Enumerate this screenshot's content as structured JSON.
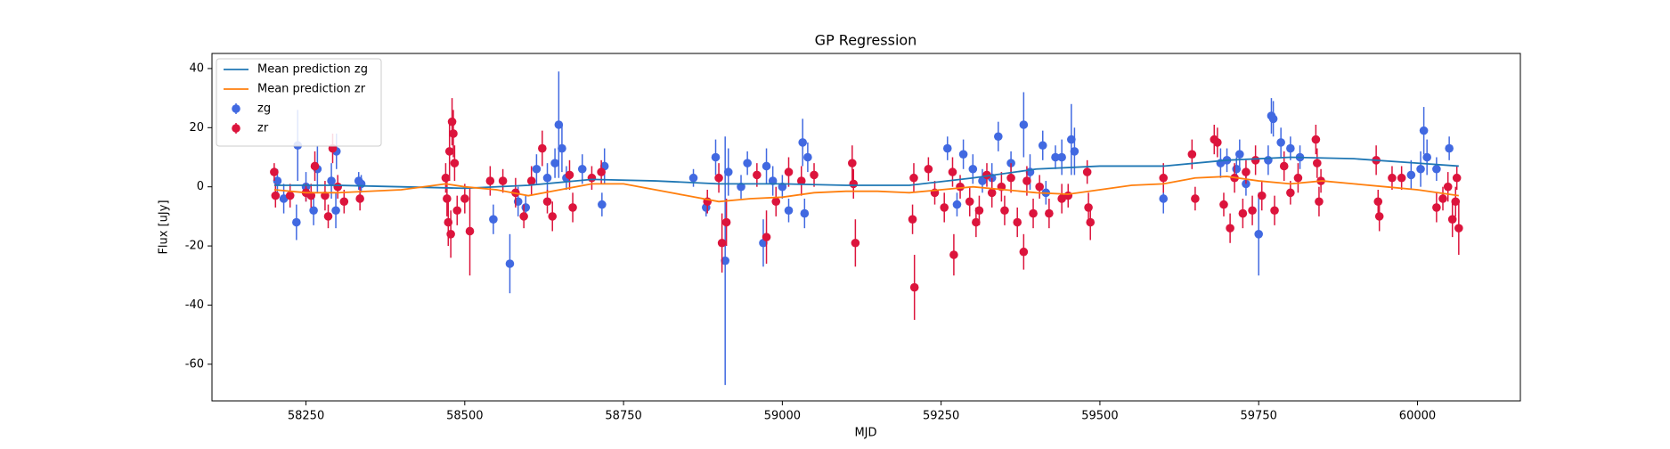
{
  "chart_data": {
    "type": "errorbar",
    "title": "GP Regression",
    "x_label": "MJD",
    "y_label": "Flux [uJy]",
    "xlim": [
      58102,
      60162
    ],
    "ylim": [
      -72.4,
      45.1
    ],
    "xticks": [
      58250,
      58500,
      58750,
      59000,
      59250,
      59500,
      59750,
      60000
    ],
    "yticks": [
      -60,
      -40,
      -20,
      0,
      20,
      40
    ],
    "legend": "upper left",
    "series": [
      {
        "name": "Mean prediction zg",
        "type": "line",
        "color": "#1f77b4",
        "x": [
          58200,
          58300,
          58400,
          58500,
          58600,
          58700,
          58800,
          58900,
          59000,
          59100,
          59200,
          59300,
          59400,
          59500,
          59600,
          59700,
          59800,
          59900,
          60000,
          60065
        ],
        "values": [
          0.5,
          0.5,
          0,
          -0.5,
          0.5,
          2.5,
          2,
          1,
          1,
          0.5,
          0.5,
          3,
          6,
          7,
          7,
          9,
          10,
          9.5,
          8,
          7
        ]
      },
      {
        "name": "Mean prediction zr",
        "type": "line",
        "color": "#ff7f0e",
        "x": [
          58200,
          58250,
          58300,
          58400,
          58470,
          58500,
          58550,
          58600,
          58650,
          58700,
          58750,
          58800,
          58850,
          58900,
          58950,
          59000,
          59050,
          59100,
          59150,
          59200,
          59250,
          59300,
          59350,
          59400,
          59450,
          59500,
          59550,
          59600,
          59650,
          59700,
          59750,
          59800,
          59850,
          59900,
          59950,
          60000,
          60065
        ],
        "values": [
          -1,
          -2,
          -2,
          -1,
          1,
          0,
          -1,
          -3,
          -1,
          1,
          1,
          -1,
          -3,
          -5,
          -4,
          -3.5,
          -2,
          -1.5,
          -1.5,
          -2,
          -1,
          0,
          -1,
          -2,
          -2.5,
          -1,
          0.5,
          1,
          3,
          3.5,
          2,
          1,
          2,
          1,
          0,
          -1,
          -3
        ]
      },
      {
        "name": "zg",
        "type": "errorbar",
        "color": "#4169e1",
        "x": [
          58205,
          58215,
          58235,
          58237,
          58250,
          58262,
          58268,
          58290,
          58297,
          58298,
          58333,
          58337,
          58545,
          58571,
          58584,
          58596,
          58613,
          58630,
          58642,
          58648,
          58653,
          58660,
          58685,
          58716,
          58720,
          58860,
          58880,
          58895,
          58910,
          58915,
          58935,
          58945,
          58970,
          58975,
          58985,
          59000,
          59010,
          59032,
          59035,
          59040,
          59260,
          59275,
          59285,
          59300,
          59315,
          59330,
          59340,
          59360,
          59380,
          59390,
          59410,
          59415,
          59430,
          59440,
          59455,
          59460,
          59600,
          59690,
          59700,
          59715,
          59720,
          59730,
          59750,
          59765,
          59770,
          59773,
          59785,
          59800,
          59815,
          59990,
          60005,
          60010,
          60015,
          60030,
          60050
        ],
        "values": [
          2,
          -4,
          -12,
          14,
          0,
          -8,
          6,
          2,
          -8,
          12,
          2,
          1,
          -11,
          -26,
          -5,
          -7,
          6,
          3,
          8,
          21,
          13,
          3,
          6,
          -6,
          7,
          3,
          -7,
          10,
          -25,
          5,
          0,
          8,
          -19,
          7,
          2,
          0,
          -8,
          15,
          -9,
          10,
          13,
          -6,
          11,
          6,
          2,
          3,
          17,
          8,
          21,
          5,
          14,
          -2,
          10,
          10,
          16,
          12,
          -4,
          8,
          9,
          6,
          11,
          1,
          -16,
          9,
          24,
          23,
          15,
          13,
          10,
          4,
          6,
          19,
          10,
          6,
          13
        ],
        "errors": [
          4,
          5,
          6,
          12,
          5,
          5,
          8,
          6,
          6,
          6,
          3,
          3,
          5,
          10,
          5,
          4,
          5,
          5,
          5,
          18,
          8,
          4,
          5,
          4,
          6,
          3,
          3,
          6,
          42,
          8,
          4,
          4,
          8,
          6,
          5,
          4,
          4,
          8,
          5,
          5,
          4,
          4,
          5,
          5,
          4,
          5,
          5,
          4,
          11,
          6,
          5,
          4,
          4,
          6,
          12,
          8,
          5,
          5,
          4,
          4,
          5,
          4,
          14,
          5,
          6,
          6,
          5,
          4,
          4,
          5,
          6,
          8,
          6,
          4,
          4
        ]
      },
      {
        "name": "zr",
        "type": "errorbar",
        "color": "#dc143c",
        "x": [
          58200,
          58202,
          58225,
          58250,
          58258,
          58264,
          58280,
          58285,
          58292,
          58300,
          58310,
          58335,
          58470,
          58472,
          58474,
          58476,
          58478,
          58480,
          58482,
          58484,
          58488,
          58500,
          58508,
          58540,
          58560,
          58580,
          58593,
          58605,
          58622,
          58630,
          58638,
          58665,
          58670,
          58700,
          58715,
          58882,
          58900,
          58905,
          58912,
          58960,
          58975,
          58990,
          59010,
          59030,
          59050,
          59110,
          59112,
          59115,
          59205,
          59208,
          59207,
          59230,
          59240,
          59255,
          59268,
          59270,
          59280,
          59295,
          59305,
          59310,
          59322,
          59330,
          59345,
          59350,
          59360,
          59370,
          59380,
          59385,
          59395,
          59405,
          59420,
          59440,
          59450,
          59480,
          59482,
          59485,
          59600,
          59645,
          59650,
          59680,
          59685,
          59695,
          59705,
          59712,
          59725,
          59730,
          59740,
          59745,
          59755,
          59775,
          59790,
          59800,
          59812,
          59840,
          59842,
          59845,
          59848,
          59935,
          59938,
          59940,
          59960,
          59975,
          60030,
          60040,
          60048,
          60055,
          60060,
          60065,
          60062
        ],
        "values": [
          5,
          -3,
          -3,
          -2,
          -3,
          7,
          -3,
          -10,
          13,
          0,
          -5,
          -4,
          3,
          -4,
          -12,
          12,
          -16,
          22,
          18,
          8,
          -8,
          -4,
          -15,
          2,
          2,
          -2,
          -10,
          2,
          13,
          -5,
          -10,
          4,
          -7,
          3,
          5,
          -5,
          3,
          -19,
          -12,
          4,
          -17,
          -5,
          5,
          2,
          4,
          8,
          1,
          -19,
          -11,
          -34,
          3,
          6,
          -2,
          -7,
          5,
          -23,
          0,
          -5,
          -12,
          -8,
          4,
          -2,
          0,
          -8,
          3,
          -12,
          -22,
          2,
          -9,
          0,
          -9,
          -4,
          -3,
          5,
          -7,
          -12,
          3,
          11,
          -4,
          16,
          15,
          -6,
          -14,
          3,
          -9,
          5,
          -8,
          9,
          -3,
          -8,
          7,
          -2,
          3,
          16,
          8,
          -5,
          2,
          9,
          -5,
          -10,
          3,
          3,
          -7,
          -4,
          0,
          -11,
          -5,
          -14,
          3
        ],
        "errors": [
          3,
          4,
          4,
          3,
          4,
          5,
          5,
          4,
          5,
          4,
          4,
          4,
          5,
          6,
          8,
          10,
          8,
          8,
          8,
          6,
          5,
          5,
          15,
          5,
          4,
          5,
          4,
          5,
          6,
          4,
          5,
          5,
          5,
          4,
          4,
          4,
          5,
          10,
          8,
          4,
          9,
          5,
          5,
          5,
          4,
          6,
          5,
          8,
          5,
          11,
          5,
          4,
          4,
          5,
          5,
          7,
          4,
          5,
          5,
          5,
          4,
          5,
          5,
          5,
          5,
          5,
          6,
          5,
          5,
          4,
          5,
          5,
          4,
          4,
          5,
          6,
          5,
          5,
          4,
          5,
          5,
          4,
          5,
          5,
          5,
          4,
          5,
          5,
          5,
          5,
          5,
          4,
          5,
          5,
          5,
          5,
          4,
          5,
          4,
          5,
          4,
          4,
          5,
          4,
          5,
          6,
          5,
          9,
          4
        ]
      }
    ]
  }
}
